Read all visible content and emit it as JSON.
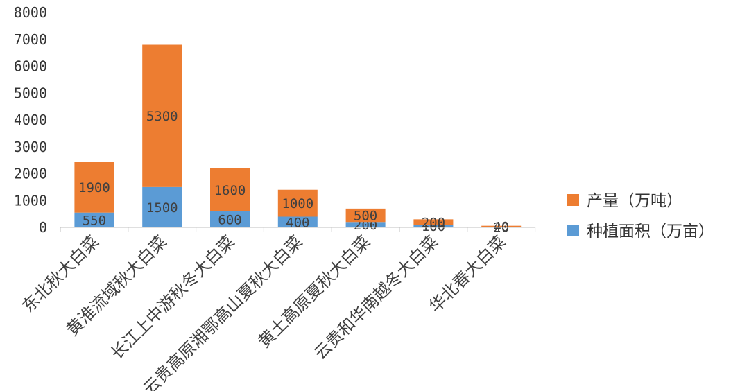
{
  "chart_data": {
    "type": "bar",
    "stacked": true,
    "categories": [
      "东北秋大白菜",
      "黄淮流域秋大白菜",
      "长江上中游秋冬大白菜",
      "云贵高原湘鄂高山夏秋大白菜",
      "黄土高原夏秋大白菜",
      "云贵和华南越冬大白菜",
      "华北春大白菜"
    ],
    "series": [
      {
        "name": "种植面积（万亩）",
        "color": "#5b9bd5",
        "values": [
          550,
          1500,
          600,
          400,
          200,
          100,
          20
        ]
      },
      {
        "name": "产量（万吨）",
        "color": "#ed7d31",
        "values": [
          1900,
          5300,
          1600,
          1000,
          500,
          200,
          40
        ]
      }
    ],
    "yticks": [
      0,
      1000,
      2000,
      3000,
      4000,
      5000,
      6000,
      7000,
      8000
    ],
    "ylim": [
      0,
      8000
    ],
    "grid": false,
    "legend_position": "right",
    "title": "",
    "xlabel": "",
    "ylabel": ""
  }
}
